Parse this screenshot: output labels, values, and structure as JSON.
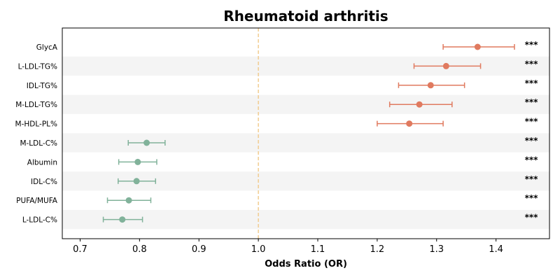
{
  "chart_data": {
    "type": "forest",
    "title": "Rheumatoid arthritis",
    "xlabel": "Odds Ratio (OR)",
    "xlim": [
      0.67,
      1.49
    ],
    "xticks": [
      0.7,
      0.8,
      0.9,
      1.0,
      1.1,
      1.2,
      1.3,
      1.4
    ],
    "xtick_labels": [
      "0.7",
      "0.8",
      "0.9",
      "1.0",
      "1.1",
      "1.2",
      "1.3",
      "1.4"
    ],
    "reference_line": 1.0,
    "colors": {
      "risk": "#e07a5f",
      "protective": "#81b29a",
      "reference": "#f2cc8f",
      "band": "#f4f4f4"
    },
    "rows": [
      {
        "label": "GlycA",
        "or": 1.369,
        "lo": 1.311,
        "hi": 1.431,
        "sig": "***",
        "group": "risk"
      },
      {
        "label": "L-LDL-TG%",
        "or": 1.316,
        "lo": 1.262,
        "hi": 1.374,
        "sig": "***",
        "group": "risk"
      },
      {
        "label": "IDL-TG%",
        "or": 1.29,
        "lo": 1.236,
        "hi": 1.347,
        "sig": "***",
        "group": "risk"
      },
      {
        "label": "M-LDL-TG%",
        "or": 1.271,
        "lo": 1.221,
        "hi": 1.326,
        "sig": "***",
        "group": "risk"
      },
      {
        "label": "M-HDL-PL%",
        "or": 1.254,
        "lo": 1.2,
        "hi": 1.311,
        "sig": "***",
        "group": "risk"
      },
      {
        "label": "M-LDL-C%",
        "or": 0.812,
        "lo": 0.781,
        "hi": 0.843,
        "sig": "***",
        "group": "protective"
      },
      {
        "label": "Albumin",
        "or": 0.797,
        "lo": 0.765,
        "hi": 0.829,
        "sig": "***",
        "group": "protective"
      },
      {
        "label": "IDL-C%",
        "or": 0.795,
        "lo": 0.764,
        "hi": 0.827,
        "sig": "***",
        "group": "protective"
      },
      {
        "label": "PUFA/MUFA",
        "or": 0.782,
        "lo": 0.746,
        "hi": 0.819,
        "sig": "***",
        "group": "protective"
      },
      {
        "label": "L-LDL-C%",
        "or": 0.771,
        "lo": 0.739,
        "hi": 0.805,
        "sig": "***",
        "group": "protective"
      }
    ]
  }
}
